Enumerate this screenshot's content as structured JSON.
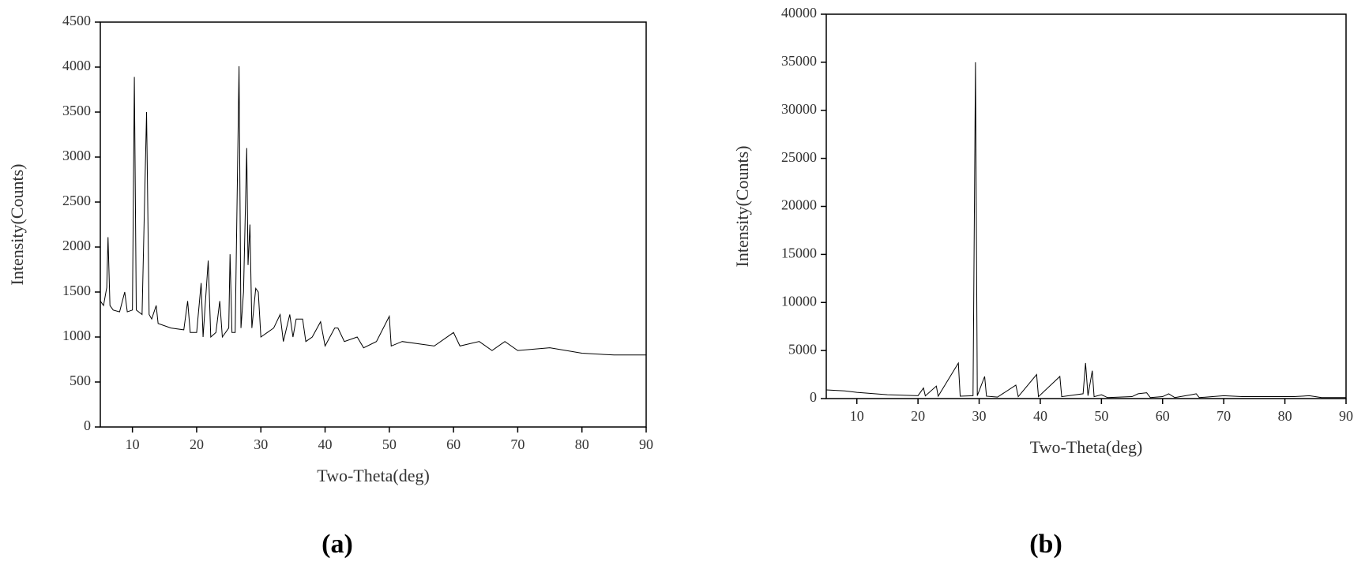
{
  "chart_data": [
    {
      "type": "line",
      "caption": "(a)",
      "x_label": "Two-Theta(deg)",
      "y_label": "Intensity(Counts)",
      "color": "#000000",
      "xlim": [
        5,
        90
      ],
      "xticks": [
        10,
        20,
        30,
        40,
        50,
        60,
        70,
        80,
        90
      ],
      "ylim": [
        0,
        4500
      ],
      "yticks": [
        0,
        500,
        1000,
        1500,
        2000,
        2500,
        3000,
        3500,
        4000,
        4500
      ],
      "x": [
        5,
        5.5,
        6,
        6.2,
        6.5,
        7,
        8,
        8.8,
        9.2,
        10,
        10.3,
        10.6,
        11.5,
        12.2,
        12.6,
        13,
        13.7,
        14,
        16,
        18,
        18.6,
        19,
        20,
        20.7,
        21,
        21.8,
        22.2,
        23,
        23.6,
        24,
        25,
        25.2,
        25.5,
        26,
        26.6,
        26.9,
        27.3,
        27.8,
        28,
        28.3,
        28.6,
        29.2,
        29.6,
        30,
        31,
        32,
        33,
        33.5,
        34.5,
        35,
        35.5,
        36.5,
        37,
        38,
        39.3,
        40,
        41.5,
        42,
        43,
        45,
        46,
        48,
        50,
        50.3,
        52,
        55,
        57,
        60,
        61,
        64,
        66,
        68,
        70,
        75,
        80,
        85,
        90
      ],
      "values": [
        1400,
        1350,
        1550,
        2110,
        1350,
        1300,
        1280,
        1500,
        1280,
        1300,
        3890,
        1300,
        1250,
        3500,
        1250,
        1200,
        1350,
        1150,
        1100,
        1080,
        1400,
        1050,
        1050,
        1600,
        1000,
        1850,
        1000,
        1050,
        1400,
        1000,
        1100,
        1920,
        1050,
        1050,
        4010,
        1100,
        1500,
        3100,
        1800,
        2250,
        1100,
        1540,
        1500,
        1000,
        1050,
        1100,
        1250,
        950,
        1250,
        1000,
        1200,
        1200,
        950,
        1000,
        1170,
        900,
        1100,
        1100,
        950,
        1000,
        880,
        950,
        1230,
        900,
        950,
        920,
        900,
        1050,
        900,
        950,
        850,
        950,
        850,
        880,
        820,
        800,
        800
      ]
    },
    {
      "type": "line",
      "caption": "(b)",
      "x_label": "Two-Theta(deg)",
      "y_label": "Intensity(Counts)",
      "color": "#000000",
      "xlim": [
        5,
        90
      ],
      "xticks": [
        10,
        20,
        30,
        40,
        50,
        60,
        70,
        80,
        90
      ],
      "ylim": [
        0,
        40000
      ],
      "yticks": [
        0,
        5000,
        10000,
        15000,
        20000,
        25000,
        30000,
        35000,
        40000
      ],
      "x": [
        5,
        8,
        10,
        15,
        20,
        20.9,
        21.2,
        23,
        23.3,
        26.6,
        26.9,
        29,
        29.4,
        29.7,
        30.9,
        31.2,
        33,
        36,
        36.4,
        39.4,
        39.7,
        43.2,
        43.5,
        47,
        47.4,
        47.8,
        48.5,
        48.8,
        50,
        51,
        55,
        56,
        57.4,
        58,
        60,
        61,
        62,
        64.7,
        65.5,
        66,
        70,
        73,
        77,
        81.5,
        84,
        86,
        90
      ],
      "values": [
        900,
        800,
        650,
        400,
        300,
        1100,
        280,
        1300,
        250,
        3700,
        250,
        300,
        35000,
        300,
        2300,
        250,
        150,
        1400,
        200,
        2500,
        200,
        2300,
        200,
        500,
        3700,
        300,
        2900,
        200,
        400,
        100,
        200,
        500,
        600,
        100,
        200,
        500,
        100,
        400,
        500,
        100,
        300,
        200,
        200,
        200,
        300,
        100,
        100
      ]
    }
  ]
}
